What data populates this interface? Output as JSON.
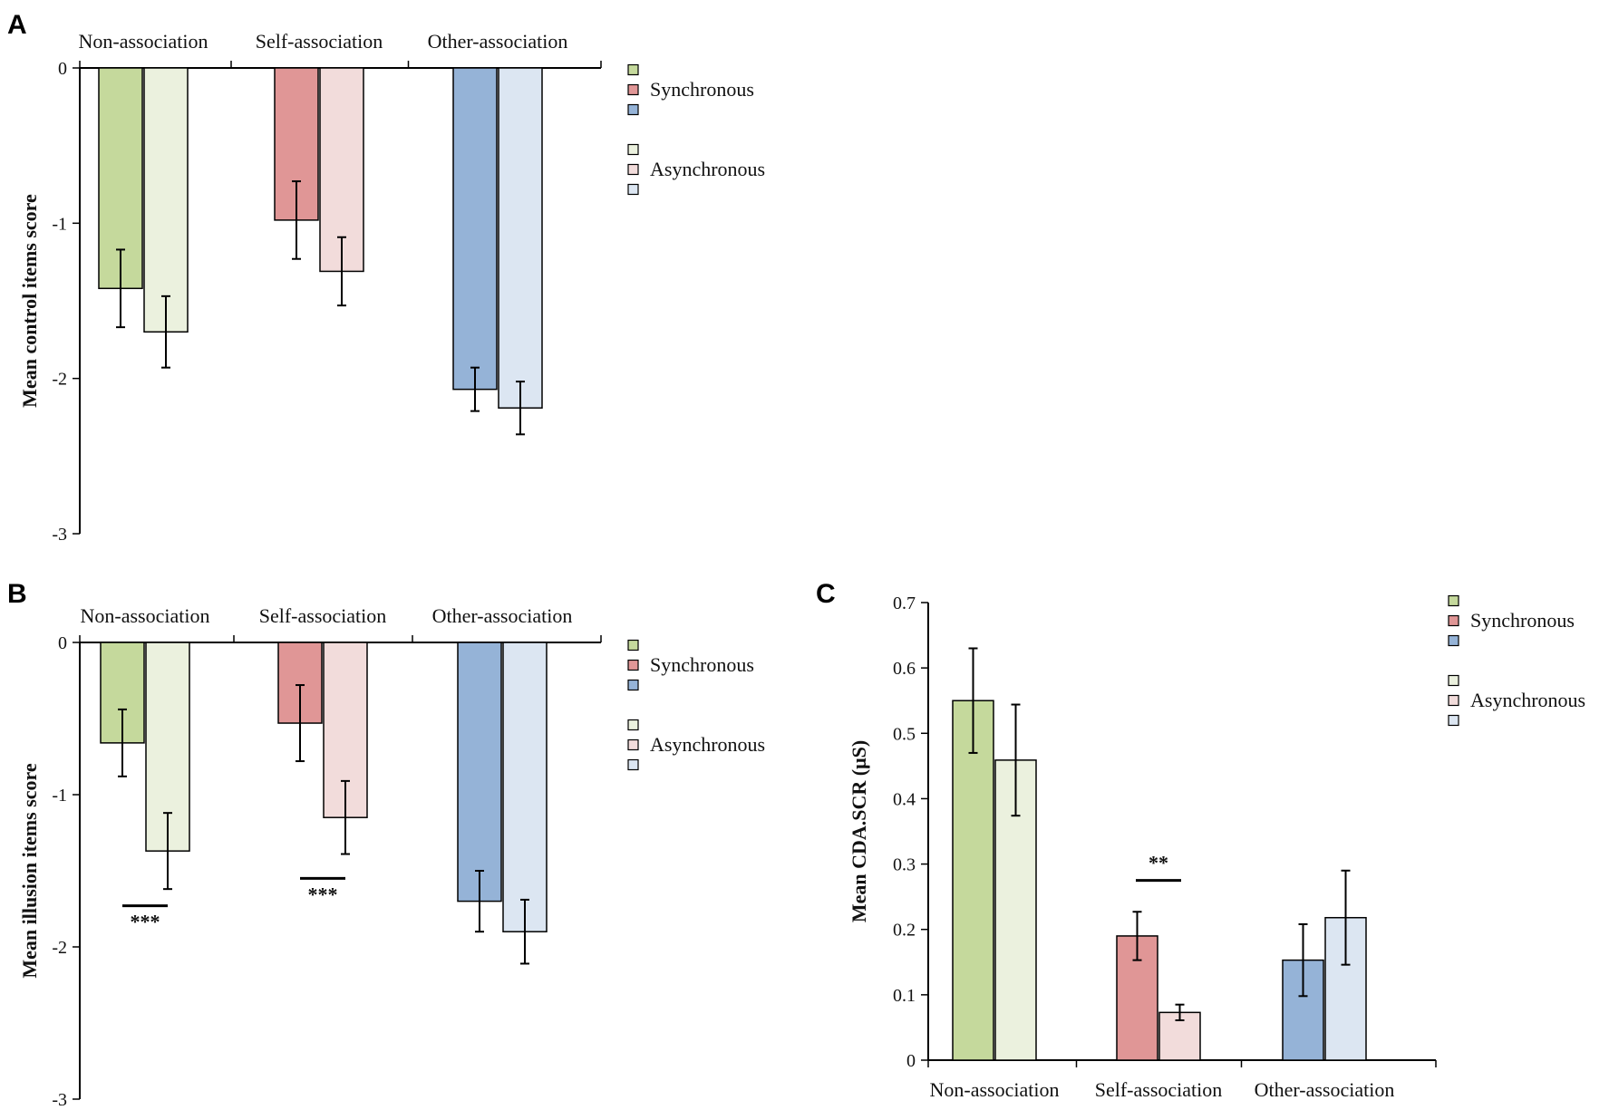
{
  "colors": {
    "non_sync": "#c5d99c",
    "non_async": "#ebf1de",
    "self_sync": "#e09696",
    "self_async": "#f2dcdb",
    "other_sync": "#95b3d7",
    "other_async": "#dce6f2",
    "axis": "#000000",
    "bar_stroke": "#000000"
  },
  "chart_data": [
    {
      "panel": "A",
      "type": "bar",
      "ylabel": "Mean control items score",
      "ylim": [
        -3,
        0
      ],
      "yticks": [
        0,
        -1,
        -2,
        -3
      ],
      "ytick_labels": [
        "0",
        "-1",
        "-2",
        "-3"
      ],
      "category_axis_position": "top",
      "categories": [
        "Non-association",
        "Self-association",
        "Other-association"
      ],
      "series": [
        {
          "name": "Synchronous",
          "values": [
            -1.42,
            -0.98,
            -2.07
          ],
          "errors": [
            0.25,
            0.25,
            0.14
          ]
        },
        {
          "name": "Asynchronous",
          "values": [
            -1.7,
            -1.31,
            -2.19
          ],
          "errors": [
            0.23,
            0.22,
            0.17
          ]
        }
      ],
      "legend": [
        "Synchronous",
        "Asynchronous"
      ],
      "legend_position": "right",
      "significance": []
    },
    {
      "panel": "B",
      "type": "bar",
      "ylabel": "Mean illusion items score",
      "ylim": [
        -3,
        0
      ],
      "yticks": [
        0,
        -1,
        -2,
        -3
      ],
      "ytick_labels": [
        "0",
        "-1",
        "-2",
        "-3"
      ],
      "category_axis_position": "top",
      "categories": [
        "Non-association",
        "Self-association",
        "Other-association"
      ],
      "series": [
        {
          "name": "Synchronous",
          "values": [
            -0.66,
            -0.53,
            -1.7
          ],
          "errors": [
            0.22,
            0.25,
            0.2
          ]
        },
        {
          "name": "Asynchronous",
          "values": [
            -1.37,
            -1.15,
            -1.9
          ],
          "errors": [
            0.25,
            0.24,
            0.21
          ]
        }
      ],
      "legend": [
        "Synchronous",
        "Asynchronous"
      ],
      "legend_position": "right",
      "significance": [
        {
          "category": 0,
          "label": "***",
          "value": -1.73
        },
        {
          "category": 1,
          "label": "***",
          "value": -1.55
        }
      ]
    },
    {
      "panel": "C",
      "type": "bar",
      "ylabel": "Mean CDA.SCR (μS)",
      "ylim": [
        0,
        0.7
      ],
      "yticks": [
        0,
        0.1,
        0.2,
        0.3,
        0.4,
        0.5,
        0.6,
        0.7
      ],
      "ytick_labels": [
        "0",
        "0.1",
        "0.2",
        "0.3",
        "0.4",
        "0.5",
        "0.6",
        "0.7"
      ],
      "category_axis_position": "bottom",
      "categories": [
        "Non-association",
        "Self-association",
        "Other-association"
      ],
      "series": [
        {
          "name": "Synchronous",
          "values": [
            0.55,
            0.19,
            0.153
          ],
          "errors": [
            0.08,
            0.037,
            0.055
          ]
        },
        {
          "name": "Asynchronous",
          "values": [
            0.459,
            0.073,
            0.218
          ],
          "errors": [
            0.085,
            0.012,
            0.072
          ]
        }
      ],
      "legend": [
        "Synchronous",
        "Asynchronous"
      ],
      "legend_position": "right",
      "significance": [
        {
          "category": 1,
          "label": "**",
          "value": 0.275
        }
      ]
    }
  ]
}
